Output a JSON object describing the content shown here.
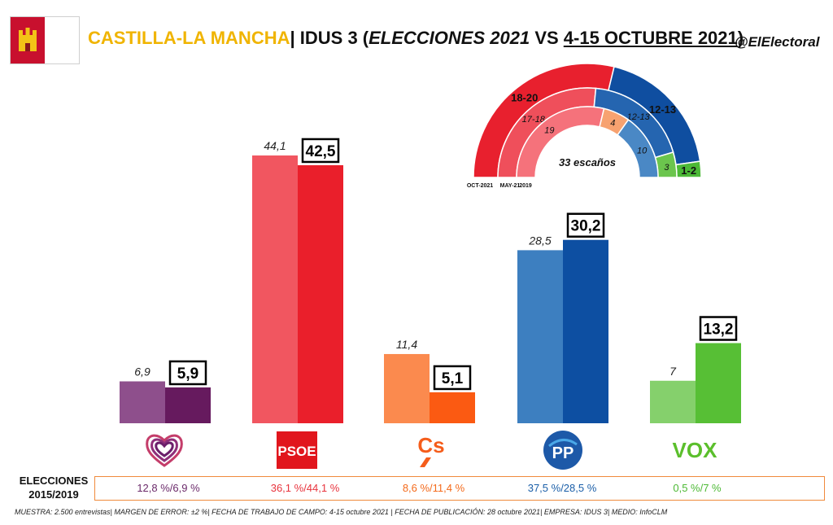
{
  "header": {
    "region": "CASTILLA-LA MANCHA",
    "sep": "|",
    "poll": "IDUS 3 (",
    "elections": "ELECCIONES 2021",
    "vs": " VS ",
    "dates": "4-15 OCTUBRE 2021",
    "close": ")"
  },
  "handle": "@ElElectoral",
  "logos": [
    "PSOE",
    "Cs",
    "PP",
    "VOX"
  ],
  "row_label_1": "ELECCIONES",
  "row_label_2": "2015/2019",
  "results_2015_2019": [
    {
      "party": "Unidas Podemos",
      "text": "12,8 %/6,9 %",
      "color": "#6b2a6a"
    },
    {
      "party": "PSOE",
      "text": "36,1 %/44,1 %",
      "color": "#e8333d"
    },
    {
      "party": "Cs",
      "text": "8,6 %/11,4 %",
      "color": "#f46a1b"
    },
    {
      "party": "PP",
      "text": "37,5 %/28,5 %",
      "color": "#1a5ea8"
    },
    {
      "party": "VOX",
      "text": "0,5 %/7 %",
      "color": "#4cb934"
    }
  ],
  "footer": "MUESTRA: 2.500 entrevistas| MARGEN DE ERROR: ±2 %| FECHA DE TRABAJO DE CAMPO: 4-15 octubre 2021 | FECHA DE PUBLICACIÓN: 28 octubre 2021| EMPRESA: IDUS 3| MEDIO: InfoCLM",
  "chart_data": [
    {
      "type": "bar",
      "categories": [
        "Unidas Podemos",
        "PSOE",
        "Cs",
        "PP",
        "VOX"
      ],
      "series": [
        {
          "values": [
            6.9,
            44.1,
            11.4,
            28.5,
            7.0
          ],
          "labels": [
            "6,9",
            "44,1",
            "11,4",
            "28,5",
            "7"
          ],
          "colors": [
            "#8e4f8c",
            "#f15660",
            "#fb8a4e",
            "#3d7fc0",
            "#85d06c"
          ]
        },
        {
          "values": [
            5.9,
            42.5,
            5.1,
            30.2,
            13.2
          ],
          "labels": [
            "5,9",
            "42,5",
            "5,1",
            "30,2",
            "13,2"
          ],
          "colors": [
            "#661a5e",
            "#ea1f2b",
            "#fb5a12",
            "#0d4fa2",
            "#57bf35"
          ]
        }
      ],
      "ylim": [
        0,
        50
      ],
      "grid": false
    },
    {
      "type": "pie",
      "subtype": "semicircle",
      "center_label": "33 escaños",
      "ring_labels": [
        "OCT-2021",
        "MAY-21",
        "2019"
      ],
      "rings": [
        {
          "slices": [
            {
              "label": "18-20",
              "value": 19,
              "color": "#e8202e"
            },
            {
              "label": "12-13",
              "value": 12.5,
              "color": "#0f4ea0"
            },
            {
              "label": "1-2",
              "value": 1.5,
              "color": "#4cb937"
            }
          ]
        },
        {
          "slices": [
            {
              "label": "17-18",
              "value": 17.5,
              "color": "#ef4f5b"
            },
            {
              "label": "12-13",
              "value": 12.5,
              "color": "#2565b0"
            },
            {
              "label": "3",
              "value": 3,
              "color": "#6bc54d"
            }
          ]
        },
        {
          "slices": [
            {
              "label": "19",
              "value": 19,
              "color": "#f5727b"
            },
            {
              "label": "4",
              "value": 4,
              "color": "#f7a270"
            },
            {
              "label": "10",
              "value": 10,
              "color": "#4a88c5"
            }
          ]
        }
      ]
    }
  ]
}
